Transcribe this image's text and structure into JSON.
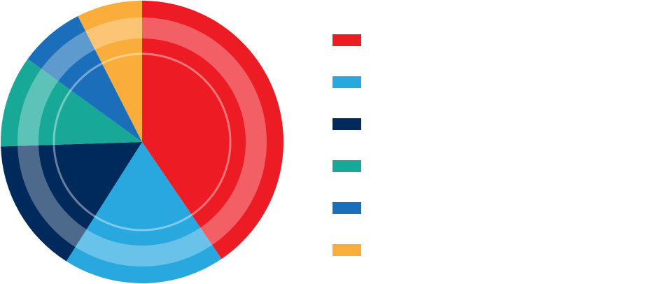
{
  "chart_data": {
    "type": "pie",
    "legend_position": "right",
    "categories": [
      "",
      "",
      "",
      "",
      "",
      ""
    ],
    "values": [
      40.5,
      18.5,
      15.5,
      10.5,
      7.5,
      7.5
    ],
    "colors": [
      "#ed1c24",
      "#29a8e0",
      "#002a5c",
      "#17a898",
      "#1b6fba",
      "#fbad3c"
    ]
  }
}
